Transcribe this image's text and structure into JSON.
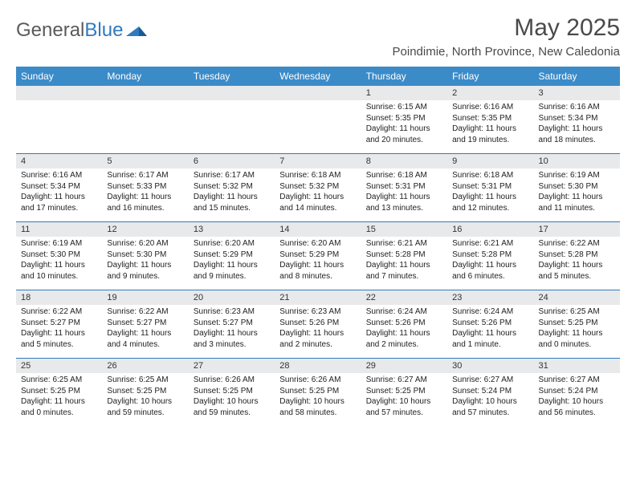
{
  "brand": {
    "part1": "General",
    "part2": "Blue"
  },
  "header": {
    "month_title": "May 2025",
    "location": "Poindimie, North Province, New Caledonia"
  },
  "colors": {
    "header_bg": "#3b8bc9",
    "date_bg": "#e8e9ea",
    "rule": "#2f7bbf",
    "text": "#222222"
  },
  "day_names": [
    "Sunday",
    "Monday",
    "Tuesday",
    "Wednesday",
    "Thursday",
    "Friday",
    "Saturday"
  ],
  "weeks": [
    {
      "dates": [
        "",
        "",
        "",
        "",
        "1",
        "2",
        "3"
      ],
      "cells": [
        null,
        null,
        null,
        null,
        {
          "sunrise": "6:15 AM",
          "sunset": "5:35 PM",
          "daylight": "11 hours and 20 minutes."
        },
        {
          "sunrise": "6:16 AM",
          "sunset": "5:35 PM",
          "daylight": "11 hours and 19 minutes."
        },
        {
          "sunrise": "6:16 AM",
          "sunset": "5:34 PM",
          "daylight": "11 hours and 18 minutes."
        }
      ]
    },
    {
      "dates": [
        "4",
        "5",
        "6",
        "7",
        "8",
        "9",
        "10"
      ],
      "cells": [
        {
          "sunrise": "6:16 AM",
          "sunset": "5:34 PM",
          "daylight": "11 hours and 17 minutes."
        },
        {
          "sunrise": "6:17 AM",
          "sunset": "5:33 PM",
          "daylight": "11 hours and 16 minutes."
        },
        {
          "sunrise": "6:17 AM",
          "sunset": "5:32 PM",
          "daylight": "11 hours and 15 minutes."
        },
        {
          "sunrise": "6:18 AM",
          "sunset": "5:32 PM",
          "daylight": "11 hours and 14 minutes."
        },
        {
          "sunrise": "6:18 AM",
          "sunset": "5:31 PM",
          "daylight": "11 hours and 13 minutes."
        },
        {
          "sunrise": "6:18 AM",
          "sunset": "5:31 PM",
          "daylight": "11 hours and 12 minutes."
        },
        {
          "sunrise": "6:19 AM",
          "sunset": "5:30 PM",
          "daylight": "11 hours and 11 minutes."
        }
      ]
    },
    {
      "dates": [
        "11",
        "12",
        "13",
        "14",
        "15",
        "16",
        "17"
      ],
      "cells": [
        {
          "sunrise": "6:19 AM",
          "sunset": "5:30 PM",
          "daylight": "11 hours and 10 minutes."
        },
        {
          "sunrise": "6:20 AM",
          "sunset": "5:30 PM",
          "daylight": "11 hours and 9 minutes."
        },
        {
          "sunrise": "6:20 AM",
          "sunset": "5:29 PM",
          "daylight": "11 hours and 9 minutes."
        },
        {
          "sunrise": "6:20 AM",
          "sunset": "5:29 PM",
          "daylight": "11 hours and 8 minutes."
        },
        {
          "sunrise": "6:21 AM",
          "sunset": "5:28 PM",
          "daylight": "11 hours and 7 minutes."
        },
        {
          "sunrise": "6:21 AM",
          "sunset": "5:28 PM",
          "daylight": "11 hours and 6 minutes."
        },
        {
          "sunrise": "6:22 AM",
          "sunset": "5:28 PM",
          "daylight": "11 hours and 5 minutes."
        }
      ]
    },
    {
      "dates": [
        "18",
        "19",
        "20",
        "21",
        "22",
        "23",
        "24"
      ],
      "cells": [
        {
          "sunrise": "6:22 AM",
          "sunset": "5:27 PM",
          "daylight": "11 hours and 5 minutes."
        },
        {
          "sunrise": "6:22 AM",
          "sunset": "5:27 PM",
          "daylight": "11 hours and 4 minutes."
        },
        {
          "sunrise": "6:23 AM",
          "sunset": "5:27 PM",
          "daylight": "11 hours and 3 minutes."
        },
        {
          "sunrise": "6:23 AM",
          "sunset": "5:26 PM",
          "daylight": "11 hours and 2 minutes."
        },
        {
          "sunrise": "6:24 AM",
          "sunset": "5:26 PM",
          "daylight": "11 hours and 2 minutes."
        },
        {
          "sunrise": "6:24 AM",
          "sunset": "5:26 PM",
          "daylight": "11 hours and 1 minute."
        },
        {
          "sunrise": "6:25 AM",
          "sunset": "5:25 PM",
          "daylight": "11 hours and 0 minutes."
        }
      ]
    },
    {
      "dates": [
        "25",
        "26",
        "27",
        "28",
        "29",
        "30",
        "31"
      ],
      "cells": [
        {
          "sunrise": "6:25 AM",
          "sunset": "5:25 PM",
          "daylight": "11 hours and 0 minutes."
        },
        {
          "sunrise": "6:25 AM",
          "sunset": "5:25 PM",
          "daylight": "10 hours and 59 minutes."
        },
        {
          "sunrise": "6:26 AM",
          "sunset": "5:25 PM",
          "daylight": "10 hours and 59 minutes."
        },
        {
          "sunrise": "6:26 AM",
          "sunset": "5:25 PM",
          "daylight": "10 hours and 58 minutes."
        },
        {
          "sunrise": "6:27 AM",
          "sunset": "5:25 PM",
          "daylight": "10 hours and 57 minutes."
        },
        {
          "sunrise": "6:27 AM",
          "sunset": "5:24 PM",
          "daylight": "10 hours and 57 minutes."
        },
        {
          "sunrise": "6:27 AM",
          "sunset": "5:24 PM",
          "daylight": "10 hours and 56 minutes."
        }
      ]
    }
  ],
  "labels": {
    "sunrise_prefix": "Sunrise: ",
    "sunset_prefix": "Sunset: ",
    "daylight_prefix": "Daylight: "
  }
}
